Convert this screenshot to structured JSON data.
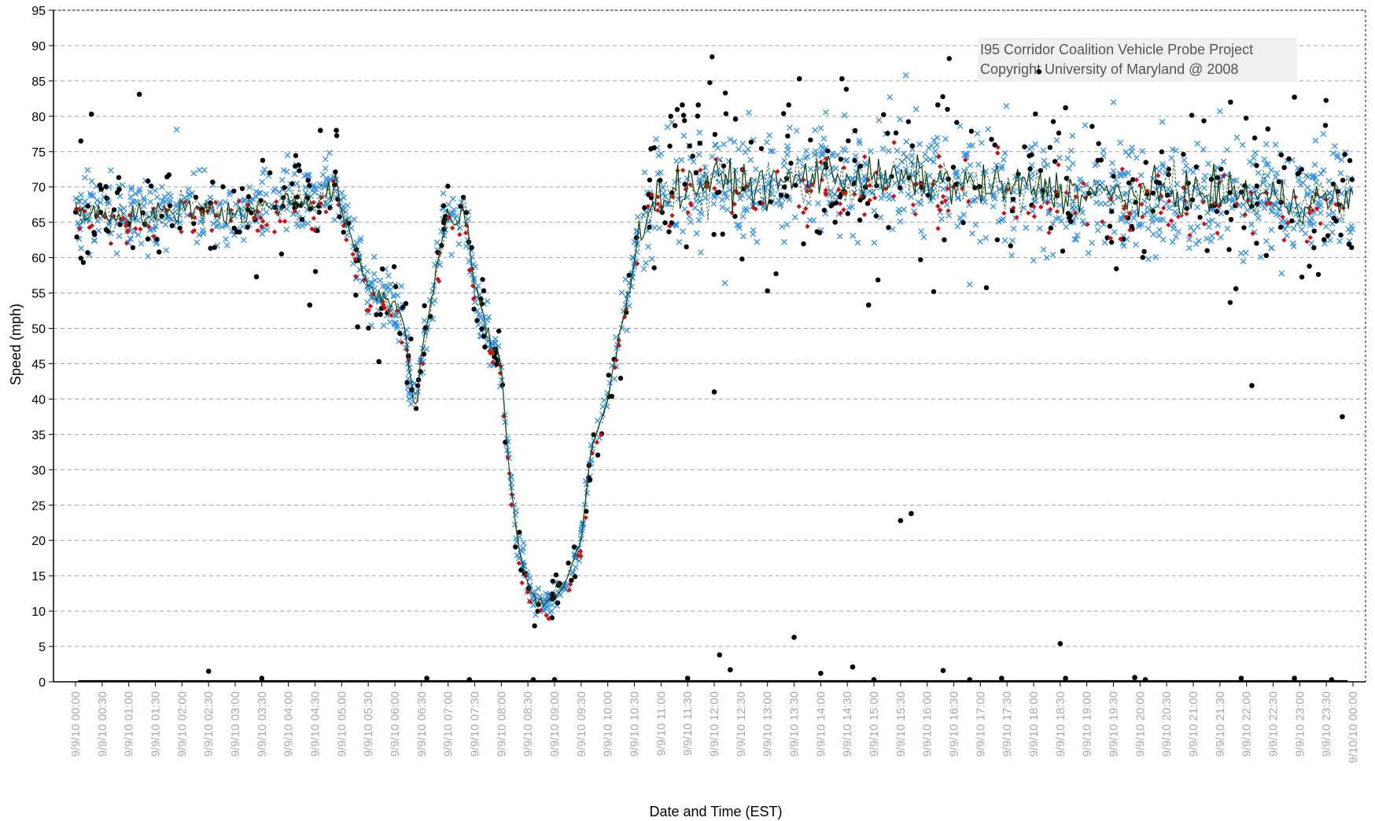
{
  "chart_data": {
    "type": "scatter",
    "xlabel": "Date and Time (EST)",
    "ylabel": "Speed (mph)",
    "ylim": [
      0,
      95
    ],
    "y_ticks": [
      0,
      5,
      10,
      15,
      20,
      25,
      30,
      35,
      40,
      45,
      50,
      55,
      60,
      65,
      70,
      75,
      80,
      85,
      90,
      95
    ],
    "x_range_hours": [
      0,
      24
    ],
    "x_tick_labels": [
      "9/9/10 00:00",
      "9/9/10 00:30",
      "9/9/10 01:00",
      "9/9/10 01:30",
      "9/9/10 02:00",
      "9/9/10 02:30",
      "9/9/10 03:00",
      "9/9/10 03:30",
      "9/9/10 04:00",
      "9/9/10 04:30",
      "9/9/10 05:00",
      "9/9/10 05:30",
      "9/9/10 06:00",
      "9/9/10 06:30",
      "9/9/10 07:00",
      "9/9/10 07:30",
      "9/9/10 08:00",
      "9/9/10 08:30",
      "9/9/10 09:00",
      "9/9/10 09:30",
      "9/9/10 10:00",
      "9/9/10 10:30",
      "9/9/10 11:00",
      "9/9/10 11:30",
      "9/9/10 12:00",
      "9/9/10 12:30",
      "9/9/10 13:00",
      "9/9/10 13:30",
      "9/9/10 14:00",
      "9/9/10 14:30",
      "9/9/10 15:00",
      "9/9/10 15:30",
      "9/9/10 16:00",
      "9/9/10 16:30",
      "9/9/10 17:00",
      "9/9/10 17:30",
      "9/9/10 18:00",
      "9/9/10 18:30",
      "9/9/10 19:00",
      "9/9/10 19:30",
      "9/9/10 20:00",
      "9/9/10 20:30",
      "9/9/10 21:00",
      "9/9/10 21:30",
      "9/9/10 22:00",
      "9/9/10 22:30",
      "9/9/10 23:00",
      "9/9/10 23:30",
      "9/10/10 00:00"
    ],
    "grid": "horizontal dashed",
    "watermark": [
      "I95 Corridor Coalition Vehicle Probe Project",
      "Copyright University of Maryland @ 2008"
    ],
    "colors": {
      "blue_marker": "#2f8ee8",
      "black_marker": "#000000",
      "red_marker": "#c81414",
      "line": "#0f3d0f",
      "grid": "#a0a0a0",
      "watermark_bg": "#f0f0f0"
    },
    "speed_profile": {
      "x": [
        0,
        0.5,
        1.0,
        1.5,
        2.0,
        2.5,
        3.0,
        3.5,
        4.0,
        4.5,
        4.9,
        5.0,
        5.2,
        5.5,
        5.8,
        6.0,
        6.2,
        6.3,
        6.4,
        6.5,
        6.7,
        6.9,
        7.0,
        7.2,
        7.3,
        7.5,
        7.7,
        8.0,
        8.1,
        8.3,
        8.5,
        8.6,
        8.8,
        9.0,
        9.2,
        9.5,
        9.7,
        10.0,
        10.2,
        10.4,
        10.6,
        11.0,
        12.0,
        13.0,
        14.0,
        15.0,
        16.0,
        17.0,
        18.0,
        19.0,
        20.0,
        21.0,
        22.0,
        23.0,
        24.0
      ],
      "y": [
        67,
        66,
        66,
        66,
        67,
        67,
        66,
        67,
        68,
        68,
        70,
        67,
        62,
        56,
        54,
        54,
        50,
        42,
        39,
        46,
        55,
        63,
        66,
        64,
        68,
        56,
        50,
        45,
        34,
        20,
        14,
        12,
        11,
        12,
        14,
        20,
        33,
        40,
        48,
        55,
        65,
        69,
        71,
        70,
        72,
        71,
        71,
        70,
        70,
        69,
        69,
        69,
        69,
        68,
        68
      ]
    },
    "outliers_black": [
      {
        "x": 0.1,
        "y": 76.5
      },
      {
        "x": 0.3,
        "y": 80.3
      },
      {
        "x": 1.2,
        "y": 83.1
      },
      {
        "x": 3.4,
        "y": 57.3
      },
      {
        "x": 4.4,
        "y": 53.3
      },
      {
        "x": 4.6,
        "y": 78
      },
      {
        "x": 4.9,
        "y": 78
      },
      {
        "x": 5.3,
        "y": 50.2
      },
      {
        "x": 5.7,
        "y": 45.3
      },
      {
        "x": 11.4,
        "y": 81.6
      },
      {
        "x": 11.7,
        "y": 81.6
      },
      {
        "x": 12.0,
        "y": 41
      },
      {
        "x": 12.4,
        "y": 79.6
      },
      {
        "x": 13.0,
        "y": 55.3
      },
      {
        "x": 13.4,
        "y": 81.6
      },
      {
        "x": 13.6,
        "y": 85.3
      },
      {
        "x": 14.4,
        "y": 85.3
      },
      {
        "x": 14.9,
        "y": 53.3
      },
      {
        "x": 15.5,
        "y": 22.8
      },
      {
        "x": 15.7,
        "y": 23.8
      },
      {
        "x": 16.2,
        "y": 81.6
      },
      {
        "x": 18.1,
        "y": 86.3
      },
      {
        "x": 18.6,
        "y": 81.2
      },
      {
        "x": 21.7,
        "y": 82
      },
      {
        "x": 22.1,
        "y": 41.9
      },
      {
        "x": 22.4,
        "y": 78.2
      },
      {
        "x": 22.9,
        "y": 82.7
      },
      {
        "x": 23.8,
        "y": 37.5
      },
      {
        "x": 21.8,
        "y": 55.6
      }
    ],
    "outliers_blue": [
      {
        "x": 1.9,
        "y": 78.1
      },
      {
        "x": 15.3,
        "y": 82.7
      },
      {
        "x": 15.6,
        "y": 85.8
      },
      {
        "x": 19.5,
        "y": 82
      },
      {
        "x": 16.8,
        "y": 56.2
      },
      {
        "x": 21.5,
        "y": 80.7
      },
      {
        "x": 12.2,
        "y": 56.4
      }
    ],
    "zero_speed_points": [
      {
        "x": 2.5,
        "y": 1.5
      },
      {
        "x": 3.5,
        "y": 0.5
      },
      {
        "x": 6.6,
        "y": 0.5
      },
      {
        "x": 7.4,
        "y": 0.3
      },
      {
        "x": 11.5,
        "y": 0.5
      },
      {
        "x": 12.1,
        "y": 3.8
      },
      {
        "x": 12.3,
        "y": 1.7
      },
      {
        "x": 13.5,
        "y": 6.3
      },
      {
        "x": 14.0,
        "y": 1.2
      },
      {
        "x": 14.6,
        "y": 2.1
      },
      {
        "x": 15.0,
        "y": 0.3
      },
      {
        "x": 16.3,
        "y": 1.6
      },
      {
        "x": 17.4,
        "y": 0.5
      },
      {
        "x": 18.5,
        "y": 5.4
      },
      {
        "x": 18.6,
        "y": 0.5
      },
      {
        "x": 19.9,
        "y": 0.6
      },
      {
        "x": 21.9,
        "y": 0.5
      },
      {
        "x": 22.9,
        "y": 0.5
      },
      {
        "x": 23.6,
        "y": 0.3
      },
      {
        "x": 8.6,
        "y": 0.3
      },
      {
        "x": 9.0,
        "y": 0.3
      },
      {
        "x": 16.8,
        "y": 0.3
      },
      {
        "x": 20.1,
        "y": 0.3
      }
    ]
  }
}
